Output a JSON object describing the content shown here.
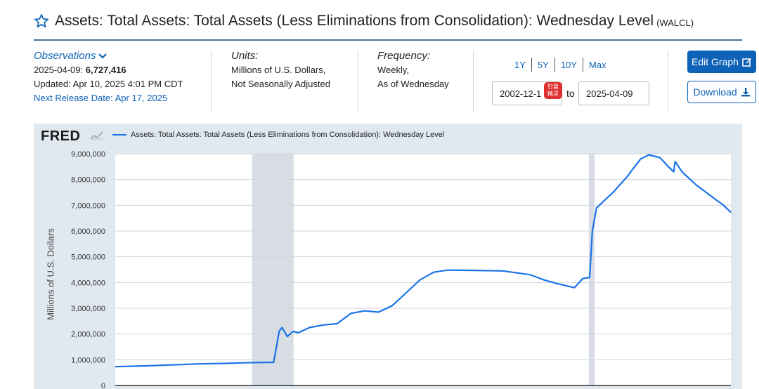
{
  "header": {
    "title": "Assets: Total Assets: Total Assets (Less Eliminations from Consolidation): Wednesday Level",
    "series_id": "(WALCL)"
  },
  "observations": {
    "label": "Observations",
    "date": "2025-04-09:",
    "value": "6,727,416",
    "updated": "Updated: Apr 10, 2025 4:01 PM CDT",
    "next_release": "Next Release Date: Apr 17, 2025"
  },
  "units": {
    "label": "Units:",
    "line1": "Millions of U.S. Dollars,",
    "line2": "Not Seasonally Adjusted"
  },
  "frequency": {
    "label": "Frequency:",
    "line1": "Weekly,",
    "line2": "As of Wednesday"
  },
  "range": {
    "links": [
      "1Y",
      "5Y",
      "10Y",
      "Max"
    ],
    "start": "2002-12-1",
    "to_label": "to",
    "end": "2025-04-09",
    "badge_line1": "钉盘",
    "badge_line2": "精灵"
  },
  "buttons": {
    "edit": "Edit Graph",
    "download": "Download"
  },
  "colors": {
    "accent": "#0d61b7",
    "series": "#1a73e8",
    "recession": "#c9d2da",
    "panel": "#e1e9f0"
  },
  "chart_data": {
    "type": "line",
    "logo": "FRED",
    "series": [
      {
        "name": "Assets: Total Assets: Total Assets (Less Eliminations from Consolidation): Wednesday Level",
        "x": [
          2002.96,
          2004.0,
          2005.0,
          2006.0,
          2007.0,
          2007.6,
          2008.0,
          2008.7,
          2008.9,
          2009.0,
          2009.2,
          2009.4,
          2009.6,
          2010.0,
          2010.5,
          2011.0,
          2011.5,
          2012.0,
          2012.5,
          2013.0,
          2013.5,
          2014.0,
          2014.5,
          2015.0,
          2016.0,
          2017.0,
          2018.0,
          2018.5,
          2019.0,
          2019.6,
          2019.9,
          2020.15,
          2020.25,
          2020.4,
          2020.6,
          2021.0,
          2021.5,
          2022.0,
          2022.3,
          2022.7,
          2023.0,
          2023.2,
          2023.25,
          2023.5,
          2024.0,
          2024.5,
          2025.0,
          2025.27
        ],
        "values": [
          730000,
          760000,
          800000,
          840000,
          860000,
          880000,
          890000,
          900000,
          2100000,
          2250000,
          1900000,
          2100000,
          2050000,
          2250000,
          2350000,
          2400000,
          2800000,
          2900000,
          2850000,
          3100000,
          3600000,
          4100000,
          4400000,
          4480000,
          4470000,
          4450000,
          4300000,
          4100000,
          3950000,
          3800000,
          4150000,
          4200000,
          6000000,
          6900000,
          7100000,
          7500000,
          8100000,
          8800000,
          8960000,
          8850000,
          8500000,
          8300000,
          8700000,
          8300000,
          7800000,
          7400000,
          7000000,
          6727416
        ]
      }
    ],
    "ylabel": "Millions of U.S. Dollars",
    "ylim": [
      0,
      9000000
    ],
    "y_ticks": [
      "0",
      "1,000,000",
      "2,000,000",
      "3,000,000",
      "4,000,000",
      "5,000,000",
      "6,000,000",
      "7,000,000",
      "8,000,000",
      "9,000,000"
    ],
    "xlim": [
      2002.96,
      2025.27
    ],
    "recessions": [
      [
        2007.92,
        2009.42
      ],
      [
        2020.12,
        2020.33
      ]
    ],
    "grid": true
  }
}
